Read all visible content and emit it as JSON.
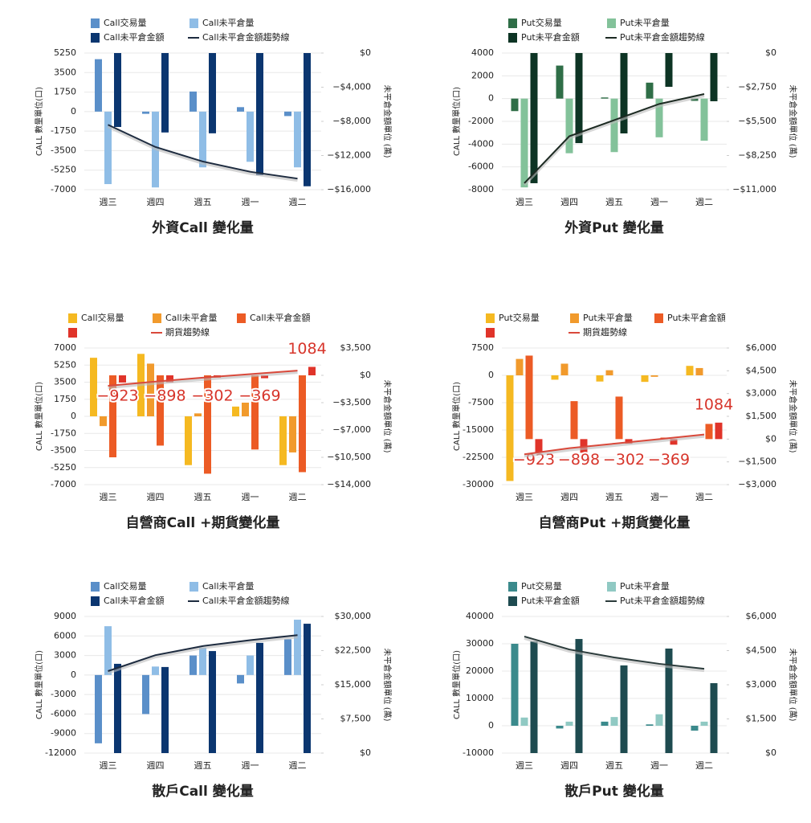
{
  "chart_data": [
    {
      "type": "bar",
      "title": "外資Call 變化量",
      "y_label": "CALL 數量單位(口)",
      "y2_label": "未平倉金額單位 (萬)",
      "categories": [
        "週三",
        "週四",
        "週五",
        "週一",
        "週二"
      ],
      "ylim": [
        -7000,
        5250
      ],
      "yticks": [
        5250,
        3500,
        1750,
        0,
        -1750,
        -3500,
        -5250,
        -7000
      ],
      "y2lim": [
        -16000,
        0
      ],
      "y2ticks": [
        {
          "value": 0,
          "label": "$0"
        },
        {
          "value": -4000,
          "label": "−$4,000"
        },
        {
          "value": -8000,
          "label": "−$8,000"
        },
        {
          "value": -12000,
          "label": "−$12,000"
        },
        {
          "value": -16000,
          "label": "−$16,000"
        }
      ],
      "grid": true,
      "series": [
        {
          "name": "Call交易量",
          "type": "bar",
          "color": "#5a8fc9",
          "values": [
            4700,
            -200,
            1800,
            400,
            -400
          ]
        },
        {
          "name": "Call未平倉量",
          "type": "bar",
          "color": "#8fbde6",
          "values": [
            -6500,
            -6800,
            -5000,
            -4500,
            -5000
          ]
        },
        {
          "name": "Call未平倉金額",
          "type": "bar",
          "axis": "y2",
          "color": "#0b3670",
          "values": [
            -8660,
            -9300,
            -9400,
            -14300,
            -15600
          ]
        },
        {
          "name": "Call未平倉金額趨勢線",
          "type": "line",
          "axis": "y2",
          "color": "#1d2b3f",
          "values": [
            -8400,
            -11000,
            -12700,
            -13900,
            -14700
          ]
        }
      ]
    },
    {
      "type": "bar",
      "title": "外資Put 變化量",
      "y_label": "CALL 數量單位(口)",
      "y2_label": "未平倉金額單位 (萬)",
      "categories": [
        "週三",
        "週四",
        "週五",
        "週一",
        "週二"
      ],
      "ylim": [
        -8000,
        4000
      ],
      "yticks": [
        4000,
        2000,
        0,
        -2000,
        -4000,
        -6000,
        -8000
      ],
      "y2lim": [
        -11000,
        0
      ],
      "y2ticks": [
        {
          "value": 0,
          "label": "$0"
        },
        {
          "value": -2750,
          "label": "−$2,750"
        },
        {
          "value": -5500,
          "label": "−$5,500"
        },
        {
          "value": -8250,
          "label": "−$8,250"
        },
        {
          "value": -11000,
          "label": "−$11,000"
        }
      ],
      "grid": true,
      "series": [
        {
          "name": "Put交易量",
          "type": "bar",
          "color": "#2f6e47",
          "values": [
            -1100,
            2900,
            100,
            1400,
            -200
          ]
        },
        {
          "name": "Put未平倉量",
          "type": "bar",
          "color": "#83c29a",
          "values": [
            -7800,
            -4800,
            -4700,
            -3400,
            -3700
          ]
        },
        {
          "name": "Put未平倉金額",
          "type": "bar",
          "axis": "y2",
          "color": "#0d3424",
          "values": [
            -10480,
            -7250,
            -6470,
            -2720,
            -3880
          ]
        },
        {
          "name": "Put未平倉金額趨勢線",
          "type": "line",
          "axis": "y2",
          "color": "#1c2a22",
          "values": [
            -10480,
            -6700,
            -5400,
            -4100,
            -3300
          ]
        }
      ]
    },
    {
      "type": "bar",
      "title": "自營商Call +期貨變化量",
      "y_label": "CALL 數量單位(口)",
      "y2_label": "未平倉金額單位 (萬)",
      "categories": [
        "週三",
        "週四",
        "週五",
        "週一",
        "週二"
      ],
      "ylim": [
        -7000,
        7000
      ],
      "yticks": [
        7000,
        5250,
        3500,
        1750,
        0,
        -1750,
        -3500,
        -5250,
        -7000
      ],
      "y2lim": [
        -14000,
        3500
      ],
      "y2ticks": [
        {
          "value": 3500,
          "label": "$3,500"
        },
        {
          "value": 0,
          "label": "$0"
        },
        {
          "value": -3500,
          "label": "−$3,500"
        },
        {
          "value": -7000,
          "label": "−$7,000"
        },
        {
          "value": -10500,
          "label": "−$10,500"
        },
        {
          "value": -14000,
          "label": "−$14,000"
        }
      ],
      "grid": true,
      "series": [
        {
          "name": "Call交易量",
          "type": "bar",
          "color": "#f5b921",
          "values": [
            6000,
            6400,
            -5000,
            1000,
            -5000
          ]
        },
        {
          "name": "Call未平倉量",
          "type": "bar",
          "color": "#f19a2c",
          "values": [
            -1000,
            5400,
            300,
            1400,
            -3700
          ]
        },
        {
          "name": "Call未平倉金額",
          "type": "bar",
          "axis": "y2",
          "color": "#ec5b25",
          "values": [
            -10500,
            -9000,
            -12600,
            -9500,
            -12400
          ]
        },
        {
          "type": "bar",
          "axis": "y2",
          "color": "#e0342a",
          "values": [
            -923,
            -898,
            -302,
            -369,
            1084
          ],
          "value_labels": [
            "−923",
            "−898",
            "−302",
            "−369",
            "1084"
          ]
        },
        {
          "name": "期貨趨勢線",
          "type": "line",
          "axis": "y2",
          "color": "#d9493b",
          "values": [
            -1340,
            -800,
            -300,
            150,
            600
          ]
        }
      ]
    },
    {
      "type": "bar",
      "title": "自營商Put +期貨變化量",
      "y_label": "CALL 數量單位(口)",
      "y2_label": "未平倉金額單位 (萬)",
      "categories": [
        "週三",
        "週四",
        "週五",
        "週一",
        "週二"
      ],
      "ylim": [
        -30000,
        7500
      ],
      "yticks": [
        7500,
        0,
        -7500,
        -15000,
        -22500,
        -30000
      ],
      "y2lim": [
        -3000,
        6000
      ],
      "y2ticks": [
        {
          "value": 6000,
          "label": "$6,000"
        },
        {
          "value": 4500,
          "label": "$4,500"
        },
        {
          "value": 3000,
          "label": "$3,000"
        },
        {
          "value": 1500,
          "label": "$1,500"
        },
        {
          "value": 0,
          "label": "$0"
        },
        {
          "value": -1500,
          "label": "−$1,500"
        },
        {
          "value": -3000,
          "label": "−$3,000"
        }
      ],
      "grid": true,
      "series": [
        {
          "name": "Put交易量",
          "type": "bar",
          "color": "#f5b921",
          "values": [
            -29000,
            -1200,
            -1700,
            -1800,
            2600
          ]
        },
        {
          "name": "Put未平倉量",
          "type": "bar",
          "color": "#f19a2c",
          "values": [
            4500,
            3200,
            1400,
            -400,
            2000
          ]
        },
        {
          "name": "Put未平倉金額",
          "type": "bar",
          "axis": "y2",
          "color": "#ec5b25",
          "values": [
            5500,
            2500,
            2800,
            100,
            1000
          ]
        },
        {
          "type": "bar",
          "axis": "y2",
          "color": "#e0342a",
          "values": [
            -923,
            -898,
            -302,
            -369,
            1084
          ],
          "value_labels": [
            "−923",
            "−898",
            "−302",
            "−369",
            "1084"
          ]
        },
        {
          "name": "期貨趨勢線",
          "type": "line",
          "axis": "y2",
          "color": "#d9493b",
          "values": [
            -1000,
            -600,
            -300,
            0,
            300
          ]
        }
      ]
    },
    {
      "type": "bar",
      "title": "散戶Call 變化量",
      "y_label": "CALL 數量單位(口)",
      "y2_label": "未平倉金額單位 (萬)",
      "categories": [
        "週三",
        "週四",
        "週五",
        "週一",
        "週二"
      ],
      "ylim": [
        -12000,
        9000
      ],
      "yticks": [
        9000,
        6000,
        3000,
        0,
        -3000,
        -6000,
        -9000,
        -12000
      ],
      "y2lim": [
        0,
        30000
      ],
      "y2ticks": [
        {
          "value": 30000,
          "label": "$30,000"
        },
        {
          "value": 22500,
          "label": "$22,500"
        },
        {
          "value": 15000,
          "label": "$15,000"
        },
        {
          "value": 7500,
          "label": "$7,500"
        },
        {
          "value": 0,
          "label": "$0"
        }
      ],
      "grid": true,
      "series": [
        {
          "name": "Call交易量",
          "type": "bar",
          "color": "#5a8fc9",
          "values": [
            -10500,
            -6000,
            3000,
            -1300,
            5500
          ]
        },
        {
          "name": "Call未平倉量",
          "type": "bar",
          "color": "#8fbde6",
          "values": [
            7500,
            1300,
            4200,
            3000,
            8500
          ]
        },
        {
          "name": "Call未平倉金額",
          "type": "bar",
          "axis": "y2",
          "color": "#0b3670",
          "values": [
            19600,
            18900,
            22400,
            24200,
            28400
          ]
        },
        {
          "name": "Call未平倉金額趨勢線",
          "type": "line",
          "axis": "y2",
          "color": "#1d2b3f",
          "values": [
            18000,
            21500,
            23500,
            24800,
            25900
          ]
        }
      ]
    },
    {
      "type": "bar",
      "title": "散戶Put 變化量",
      "y_label": "CALL 數量單位(口)",
      "y2_label": "未平倉金額單位 (萬)",
      "categories": [
        "週三",
        "週四",
        "週五",
        "週一",
        "週二"
      ],
      "ylim": [
        -10000,
        40000
      ],
      "yticks": [
        40000,
        30000,
        20000,
        10000,
        0,
        -10000
      ],
      "y2lim": [
        0,
        6000
      ],
      "y2ticks": [
        {
          "value": 6000,
          "label": "$6,000"
        },
        {
          "value": 4500,
          "label": "$4,500"
        },
        {
          "value": 3000,
          "label": "$3,000"
        },
        {
          "value": 1500,
          "label": "$1,500"
        },
        {
          "value": 0,
          "label": "$0"
        }
      ],
      "grid": true,
      "series": [
        {
          "name": "Put交易量",
          "type": "bar",
          "color": "#3b8a8c",
          "values": [
            30000,
            -1000,
            1500,
            500,
            -1800
          ]
        },
        {
          "name": "Put未平倉量",
          "type": "bar",
          "color": "#90c9c3",
          "values": [
            3000,
            1500,
            3200,
            4200,
            1500
          ]
        },
        {
          "name": "Put未平倉金額",
          "type": "bar",
          "axis": "y2",
          "color": "#1e4b50",
          "values": [
            4900,
            5010,
            3850,
            4590,
            3070
          ]
        },
        {
          "name": "Put未平倉金額趨勢線",
          "type": "line",
          "axis": "y2",
          "color": "#2b3b3b",
          "values": [
            5120,
            4550,
            4200,
            3920,
            3700
          ]
        }
      ]
    }
  ]
}
